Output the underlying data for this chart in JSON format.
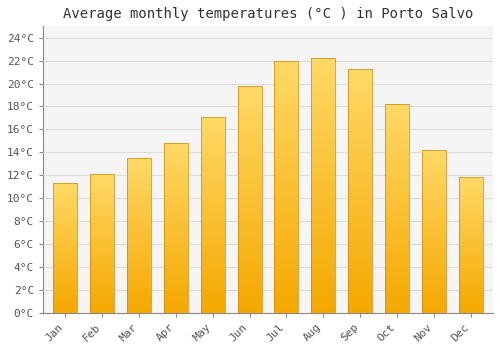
{
  "title": "Average monthly temperatures (°C ) in Porto Salvo",
  "months": [
    "Jan",
    "Feb",
    "Mar",
    "Apr",
    "May",
    "Jun",
    "Jul",
    "Aug",
    "Sep",
    "Oct",
    "Nov",
    "Dec"
  ],
  "values": [
    11.3,
    12.1,
    13.5,
    14.8,
    17.1,
    19.8,
    22.0,
    22.2,
    21.3,
    18.2,
    14.2,
    11.8
  ],
  "bar_color_bottom": "#F5A800",
  "bar_color_top": "#FFD966",
  "bar_edge_color": "#C8880A",
  "background_color": "#FFFFFF",
  "plot_bg_color": "#F5F5F5",
  "grid_color": "#DDDDDD",
  "ylim": [
    0,
    25
  ],
  "yticks": [
    0,
    2,
    4,
    6,
    8,
    10,
    12,
    14,
    16,
    18,
    20,
    22,
    24
  ],
  "ytick_labels": [
    "0°C",
    "2°C",
    "4°C",
    "6°C",
    "8°C",
    "10°C",
    "12°C",
    "14°C",
    "16°C",
    "18°C",
    "20°C",
    "22°C",
    "24°C"
  ],
  "title_fontsize": 10,
  "tick_fontsize": 8,
  "bar_width": 0.65
}
